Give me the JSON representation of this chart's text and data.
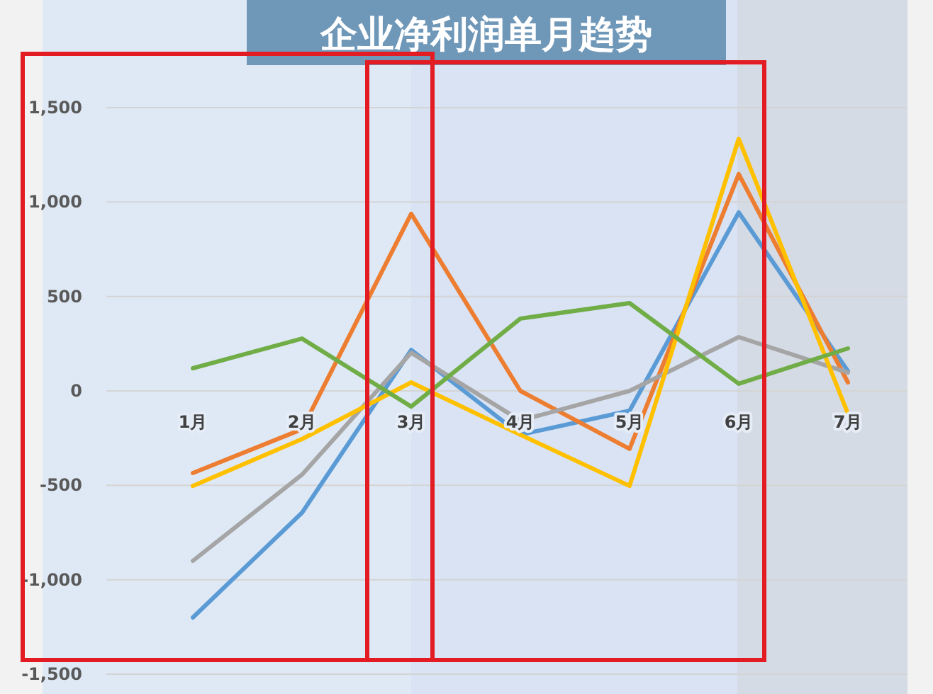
{
  "chart_data": {
    "type": "line",
    "title": "企业净利润单月趋势",
    "categories": [
      "1月",
      "2月",
      "3月",
      "4月",
      "5月",
      "6月",
      "7月"
    ],
    "series": [
      {
        "color": "#5b9bd5",
        "values": [
          -1200,
          -645,
          217,
          -232,
          -105,
          945,
          105
        ]
      },
      {
        "color": "#ed7d31",
        "values": [
          -435,
          -203,
          938,
          0,
          -307,
          1148,
          45
        ]
      },
      {
        "color": "#a5a5a5",
        "values": [
          -900,
          -443,
          202,
          -157,
          0,
          285,
          97
        ]
      },
      {
        "color": "#ffc000",
        "values": [
          -503,
          -255,
          45,
          -232,
          -503,
          1335,
          -120
        ]
      },
      {
        "color": "#70ad47",
        "values": [
          120,
          277,
          -83,
          383,
          465,
          38,
          225
        ]
      }
    ],
    "ylim": [
      -1500,
      1500
    ],
    "yticks": [
      {
        "value": -1500,
        "label": "-1,500"
      },
      {
        "value": -1000,
        "label": "-1,000"
      },
      {
        "value": -500,
        "label": "-500"
      },
      0,
      500,
      {
        "value": 1000,
        "label": "1,000"
      },
      {
        "value": 1500,
        "label": "1,500"
      }
    ],
    "grid": "y",
    "marker": "none",
    "line_style": "solid"
  }
}
